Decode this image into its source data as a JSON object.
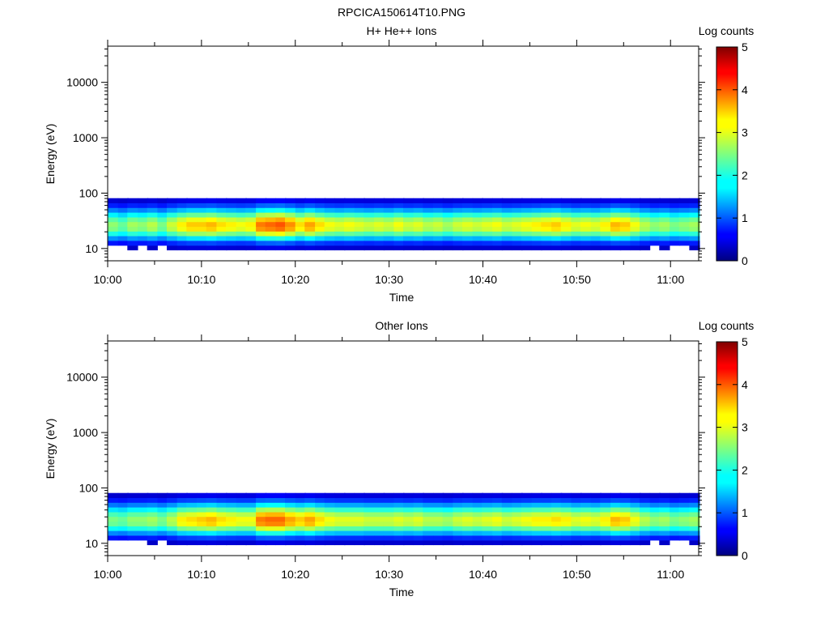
{
  "figure_title": "RPCICA150614T10.PNG",
  "chart_data": [
    {
      "type": "heatmap",
      "title": "H+ He++ Ions",
      "xlabel": "Time",
      "ylabel": "Energy (eV)",
      "x_tick_labels": [
        "10:00",
        "10:10",
        "10:20",
        "10:30",
        "10:40",
        "10:50",
        "11:00"
      ],
      "y_tick_labels": [
        "10",
        "100",
        "1000",
        "10000"
      ],
      "y_scale": "log",
      "ylim": [
        6,
        45000
      ],
      "xlim": [
        "10:00",
        "11:03"
      ],
      "colorbar": {
        "label": "Log counts",
        "ticks": [
          "0",
          "1",
          "2",
          "3",
          "4",
          "5"
        ],
        "range": [
          0,
          5
        ],
        "colormap": "jet"
      },
      "time_bins_minutes": [
        0.0,
        1.1,
        2.1,
        3.2,
        4.2,
        5.3,
        6.3,
        7.4,
        8.4,
        9.5,
        10.5,
        11.6,
        12.6,
        13.7,
        14.7,
        15.8,
        16.8,
        17.9,
        18.9,
        20.0,
        21.0,
        22.1,
        23.1,
        24.2,
        25.2,
        26.3,
        27.3,
        28.4,
        29.4,
        30.5,
        31.5,
        32.6,
        33.6,
        34.7,
        35.7,
        36.8,
        37.8,
        38.9,
        39.9,
        41.0,
        42.0,
        43.1,
        44.1,
        45.2,
        46.2,
        47.3,
        48.3,
        49.4,
        50.4,
        51.5,
        52.5,
        53.6,
        54.6,
        55.7,
        56.7,
        57.8,
        58.8,
        59.9,
        60.9,
        62.0
      ],
      "energy_bins_eV": [
        7.0,
        8.5,
        10.4,
        12.6,
        15.4,
        18.7,
        22.7,
        27.6,
        33.6,
        40.8,
        49.7,
        60.4,
        73.5,
        89.4
      ],
      "peak_log_counts": [
        2.6,
        2.4,
        2.7,
        2.6,
        2.8,
        2.5,
        2.9,
        3.2,
        3.4,
        3.4,
        3.5,
        3.3,
        3.2,
        3.1,
        3.2,
        3.8,
        3.9,
        4.0,
        3.7,
        3.3,
        3.6,
        3.3,
        3.1,
        3.0,
        3.1,
        3.0,
        2.9,
        3.0,
        2.9,
        3.1,
        2.9,
        3.0,
        2.8,
        2.9,
        2.7,
        2.9,
        3.0,
        2.9,
        3.0,
        3.1,
        2.9,
        3.0,
        3.1,
        3.2,
        3.3,
        3.4,
        3.2,
        3.0,
        3.1,
        3.0,
        3.2,
        3.5,
        3.4,
        3.1,
        2.8,
        2.6,
        2.7,
        2.5,
        2.6,
        2.7
      ],
      "peak_energy_eV": 26
    },
    {
      "type": "heatmap",
      "title": "Other Ions",
      "xlabel": "Time",
      "ylabel": "Energy (eV)",
      "x_tick_labels": [
        "10:00",
        "10:10",
        "10:20",
        "10:30",
        "10:40",
        "10:50",
        "11:00"
      ],
      "y_tick_labels": [
        "10",
        "100",
        "1000",
        "10000"
      ],
      "y_scale": "log",
      "ylim": [
        6,
        45000
      ],
      "xlim": [
        "10:00",
        "11:03"
      ],
      "colorbar": {
        "label": "Log counts",
        "ticks": [
          "0",
          "1",
          "2",
          "3",
          "4",
          "5"
        ],
        "range": [
          0,
          5
        ],
        "colormap": "jet"
      },
      "time_bins_minutes": [
        0.0,
        1.1,
        2.1,
        3.2,
        4.2,
        5.3,
        6.3,
        7.4,
        8.4,
        9.5,
        10.5,
        11.6,
        12.6,
        13.7,
        14.7,
        15.8,
        16.8,
        17.9,
        18.9,
        20.0,
        21.0,
        22.1,
        23.1,
        24.2,
        25.2,
        26.3,
        27.3,
        28.4,
        29.4,
        30.5,
        31.5,
        32.6,
        33.6,
        34.7,
        35.7,
        36.8,
        37.8,
        38.9,
        39.9,
        41.0,
        42.0,
        43.1,
        44.1,
        45.2,
        46.2,
        47.3,
        48.3,
        49.4,
        50.4,
        51.5,
        52.5,
        53.6,
        54.6,
        55.7,
        56.7,
        57.8,
        58.8,
        59.9,
        60.9,
        62.0
      ],
      "energy_bins_eV": [
        7.0,
        8.5,
        10.4,
        12.6,
        15.4,
        18.7,
        22.7,
        27.6,
        33.6,
        40.8,
        49.7,
        60.4,
        73.5,
        89.4
      ],
      "peak_log_counts": [
        2.5,
        2.4,
        2.6,
        2.6,
        2.7,
        2.5,
        2.8,
        3.2,
        3.3,
        3.4,
        3.5,
        3.3,
        3.2,
        3.1,
        3.1,
        3.8,
        3.9,
        3.9,
        3.6,
        3.4,
        3.6,
        3.3,
        3.1,
        3.0,
        3.0,
        3.0,
        2.9,
        2.9,
        2.9,
        3.0,
        2.9,
        3.0,
        2.8,
        2.8,
        2.7,
        2.9,
        3.0,
        2.9,
        3.0,
        3.1,
        2.9,
        3.0,
        3.1,
        3.2,
        3.2,
        3.3,
        3.2,
        3.0,
        3.1,
        3.0,
        3.2,
        3.5,
        3.4,
        3.1,
        2.8,
        2.6,
        2.7,
        2.5,
        2.6,
        2.7
      ],
      "peak_energy_eV": 26
    }
  ]
}
